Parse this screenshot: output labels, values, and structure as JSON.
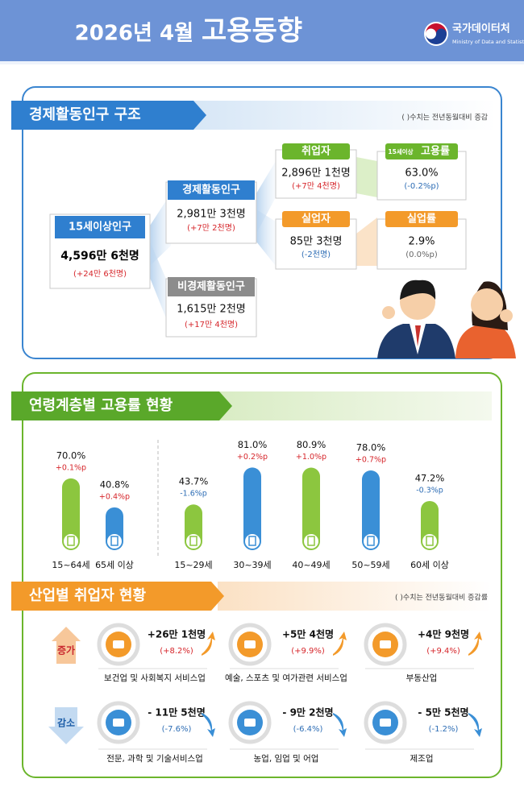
{
  "header": {
    "title_date": "2026년  4월",
    "title_main": "고용동향",
    "logo_name": "국가데이터처",
    "logo_sub": "Ministry of Data and Statistics"
  },
  "structure": {
    "title": "경제활동인구 구조",
    "note": "( )수치는 전년동월대비 증감",
    "population_15plus": {
      "label": "15세이상인구",
      "value": "4,596만 6천명",
      "change": "(+24만 6천명)"
    },
    "economically_active": {
      "label": "경제활동인구",
      "value": "2,981만 3천명",
      "change": "(+7만 2천명)"
    },
    "economically_inactive": {
      "label": "비경제활동인구",
      "value": "1,615만 2천명",
      "change": "(+17만 4천명)"
    },
    "employed": {
      "label": "취업자",
      "value": "2,896만 1천명",
      "change": "(+7만 4천명)"
    },
    "unemployed": {
      "label": "실업자",
      "value": "85만 3천명",
      "change": "(-2천명)"
    },
    "employment_rate": {
      "label_prefix": "15세이상",
      "label": "고용률",
      "value": "63.0%",
      "change": "(-0.2%p)"
    },
    "unemployment_rate": {
      "label": "실업률",
      "value": "2.9%",
      "change": "(0.0%p)"
    }
  },
  "chart_data": {
    "type": "bar",
    "title": "연령계층별 고용률 현황",
    "categories": [
      "15~64세",
      "65세 이상",
      "15~29세",
      "30~39세",
      "40~49세",
      "50~59세",
      "60세 이상"
    ],
    "values": [
      70.0,
      40.8,
      43.7,
      81.0,
      80.9,
      78.0,
      47.2
    ],
    "value_labels": [
      "70.0%",
      "40.8%",
      "43.7%",
      "81.0%",
      "80.9%",
      "78.0%",
      "47.2%"
    ],
    "change_labels": [
      "+0.1%p",
      "+0.4%p",
      "-1.6%p",
      "+0.2%p",
      "+1.0%p",
      "+0.7%p",
      "-0.3%p"
    ],
    "colors": [
      "#8cc63f",
      "#3a8fd6",
      "#8cc63f",
      "#3a8fd6",
      "#8cc63f",
      "#3a8fd6",
      "#8cc63f"
    ],
    "ylim": [
      0,
      100
    ]
  },
  "industry": {
    "title": "산업별 취업자 현황",
    "note": "( )수치는 전년동월대비 증감률",
    "increase_label": "증가",
    "decrease_label": "감소",
    "increase": [
      {
        "value": "+26만 1천명",
        "rate": "(+8.2%)",
        "name": "보건업 및 사회복지 서비스업"
      },
      {
        "value": "+5만 4천명",
        "rate": "(+9.9%)",
        "name": "예술, 스포츠 및 여가관련 서비스업"
      },
      {
        "value": "+4만 9천명",
        "rate": "(+9.4%)",
        "name": "부동산업"
      }
    ],
    "decrease": [
      {
        "value": "- 11만 5천명",
        "rate": "(-7.6%)",
        "name": "전문, 과학 및 기술서비스업"
      },
      {
        "value": "- 9만 2천명",
        "rate": "(-6.4%)",
        "name": "농업, 임업 및 어업"
      },
      {
        "value": "- 5만 5천명",
        "rate": "(-1.2%)",
        "name": "제조업"
      }
    ]
  }
}
